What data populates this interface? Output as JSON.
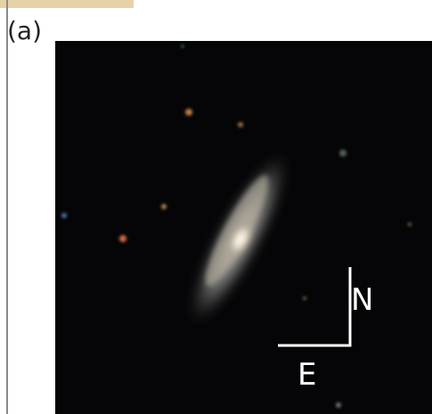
{
  "panel_label": "(a)",
  "compass": {
    "north": "N",
    "east": "E"
  }
}
